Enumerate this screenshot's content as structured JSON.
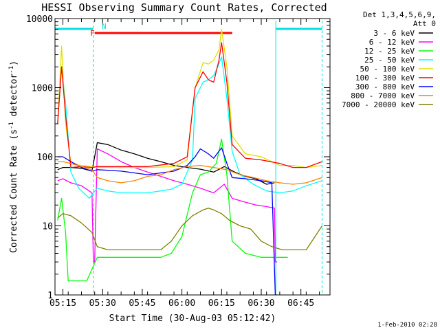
{
  "chart_data": {
    "type": "line",
    "title": "HESSI Observing Summary Count Rates, Corrected",
    "xlabel": "Start Time (30-Aug-03 05:12:42)",
    "ylabel_main": "Corrected Count Rate (s",
    "ylabel_sup1": "-1",
    "ylabel_mid": " detector",
    "ylabel_sup2": "-1",
    "ylabel_end": ")",
    "y_scale": "log",
    "ylim": [
      1,
      10000
    ],
    "xlim_min": [
      0,
      104
    ],
    "grid": false,
    "legend_position": "right",
    "y_ticks": [
      {
        "v": 1,
        "label": "1"
      },
      {
        "v": 10,
        "label": "10"
      },
      {
        "v": 100,
        "label": "100"
      },
      {
        "v": 1000,
        "label": "1000"
      },
      {
        "v": 10000,
        "label": "10000"
      }
    ],
    "x_ticks": [
      {
        "t": 3,
        "label": "05:15"
      },
      {
        "t": 18,
        "label": "05:30"
      },
      {
        "t": 33,
        "label": "05:45"
      },
      {
        "t": 48,
        "label": "06:00"
      },
      {
        "t": 63,
        "label": "06:15"
      },
      {
        "t": 78,
        "label": "06:30"
      },
      {
        "t": 93,
        "label": "06:45"
      }
    ],
    "legend_header": [
      "Det 1,3,4,5,6,9,",
      "Att 0"
    ],
    "footer_date": "1-Feb-2010 02:28",
    "flag_labels": {
      "n": "N",
      "f": "F"
    },
    "night_bars": [
      [
        0,
        14.5
      ],
      [
        83.5,
        101
      ]
    ],
    "night_edges": [
      14.5,
      83.5,
      101
    ],
    "night_color": "#00e0e0",
    "flare_bar": [
      15,
      67
    ],
    "flare_color": "#ff0000",
    "series": [
      {
        "name": "3 - 6 keV",
        "color": "#000000",
        "points": [
          [
            1,
            65
          ],
          [
            3,
            70
          ],
          [
            6,
            70
          ],
          [
            10,
            68
          ],
          [
            14,
            62
          ],
          [
            16,
            160
          ],
          [
            20,
            150
          ],
          [
            25,
            125
          ],
          [
            30,
            110
          ],
          [
            35,
            95
          ],
          [
            40,
            85
          ],
          [
            45,
            75
          ],
          [
            50,
            70
          ],
          [
            55,
            66
          ],
          [
            60,
            60
          ],
          [
            64,
            72
          ],
          [
            68,
            60
          ],
          [
            72,
            52
          ],
          [
            76,
            48
          ],
          [
            80,
            40
          ],
          [
            83,
            42
          ]
        ]
      },
      {
        "name": "6 - 12 keV",
        "color": "#ff00ff",
        "points": [
          [
            1,
            45
          ],
          [
            3,
            48
          ],
          [
            6,
            42
          ],
          [
            10,
            38
          ],
          [
            14,
            30
          ],
          [
            14.5,
            3
          ],
          [
            15,
            3
          ],
          [
            16,
            130
          ],
          [
            20,
            110
          ],
          [
            25,
            85
          ],
          [
            30,
            70
          ],
          [
            35,
            60
          ],
          [
            40,
            52
          ],
          [
            45,
            45
          ],
          [
            50,
            40
          ],
          [
            55,
            35
          ],
          [
            60,
            30
          ],
          [
            64,
            40
          ],
          [
            67,
            25
          ],
          [
            72,
            22
          ],
          [
            76,
            20
          ],
          [
            80,
            19
          ],
          [
            83,
            18
          ],
          [
            83.3,
            3
          ],
          [
            84,
            3
          ]
        ]
      },
      {
        "name": "12 - 25 keV",
        "color": "#00ff00",
        "points": [
          [
            1,
            12
          ],
          [
            2.5,
            25
          ],
          [
            4,
            8
          ],
          [
            5,
            1.6
          ],
          [
            10,
            1.6
          ],
          [
            12,
            1.6
          ],
          [
            16,
            3.5
          ],
          [
            25,
            3.5
          ],
          [
            35,
            3.5
          ],
          [
            40,
            3.5
          ],
          [
            44,
            4
          ],
          [
            48,
            7
          ],
          [
            52,
            30
          ],
          [
            55,
            55
          ],
          [
            58,
            60
          ],
          [
            61,
            80
          ],
          [
            63,
            180
          ],
          [
            65,
            55
          ],
          [
            67,
            6
          ],
          [
            72,
            4
          ],
          [
            78,
            3.5
          ],
          [
            86,
            3.5
          ],
          [
            88,
            3.5
          ]
        ]
      },
      {
        "name": "25 - 50 keV",
        "color": "#00ffff",
        "points": [
          [
            1,
            300
          ],
          [
            2.5,
            2000
          ],
          [
            4,
            600
          ],
          [
            6,
            60
          ],
          [
            9,
            35
          ],
          [
            13,
            25
          ],
          [
            14.5,
            30
          ],
          [
            16,
            35
          ],
          [
            20,
            32
          ],
          [
            25,
            30
          ],
          [
            30,
            30
          ],
          [
            35,
            30
          ],
          [
            40,
            32
          ],
          [
            44,
            34
          ],
          [
            48,
            40
          ],
          [
            52,
            90
          ],
          [
            53,
            700
          ],
          [
            56,
            1200
          ],
          [
            58,
            1300
          ],
          [
            60,
            1500
          ],
          [
            62,
            2200
          ],
          [
            63,
            2800
          ],
          [
            65,
            700
          ],
          [
            67,
            120
          ],
          [
            70,
            55
          ],
          [
            75,
            40
          ],
          [
            80,
            32
          ],
          [
            85,
            30
          ],
          [
            90,
            32
          ],
          [
            95,
            38
          ],
          [
            101,
            45
          ]
        ]
      },
      {
        "name": "50 - 100 keV",
        "color": "#e0e000",
        "points": [
          [
            1,
            300
          ],
          [
            2.5,
            4000
          ],
          [
            4,
            300
          ],
          [
            6,
            80
          ],
          [
            10,
            75
          ],
          [
            14,
            72
          ],
          [
            16,
            70
          ],
          [
            25,
            70
          ],
          [
            35,
            70
          ],
          [
            45,
            72
          ],
          [
            50,
            90
          ],
          [
            53,
            1000
          ],
          [
            56,
            2300
          ],
          [
            58,
            2200
          ],
          [
            60,
            2500
          ],
          [
            62,
            3500
          ],
          [
            63,
            7000
          ],
          [
            65,
            2000
          ],
          [
            67,
            200
          ],
          [
            72,
            110
          ],
          [
            78,
            100
          ],
          [
            85,
            75
          ],
          [
            90,
            75
          ],
          [
            95,
            70
          ],
          [
            101,
            75
          ]
        ]
      },
      {
        "name": "100 - 300 keV",
        "color": "#ff0000",
        "points": [
          [
            1,
            300
          ],
          [
            2.5,
            2000
          ],
          [
            4,
            400
          ],
          [
            6,
            70
          ],
          [
            10,
            72
          ],
          [
            14,
            70
          ],
          [
            16,
            72
          ],
          [
            25,
            72
          ],
          [
            35,
            72
          ],
          [
            45,
            80
          ],
          [
            50,
            100
          ],
          [
            53,
            1000
          ],
          [
            56,
            1700
          ],
          [
            58,
            1300
          ],
          [
            60,
            1200
          ],
          [
            62,
            2500
          ],
          [
            63,
            4500
          ],
          [
            65,
            1200
          ],
          [
            67,
            150
          ],
          [
            72,
            95
          ],
          [
            78,
            90
          ],
          [
            85,
            80
          ],
          [
            90,
            70
          ],
          [
            95,
            70
          ],
          [
            101,
            85
          ]
        ]
      },
      {
        "name": "300 - 800 keV",
        "color": "#0000ff",
        "points": [
          [
            1,
            100
          ],
          [
            3,
            100
          ],
          [
            6,
            85
          ],
          [
            10,
            70
          ],
          [
            14,
            62
          ],
          [
            16,
            65
          ],
          [
            25,
            62
          ],
          [
            35,
            55
          ],
          [
            45,
            62
          ],
          [
            50,
            75
          ],
          [
            53,
            100
          ],
          [
            55,
            130
          ],
          [
            58,
            110
          ],
          [
            60,
            95
          ],
          [
            63,
            135
          ],
          [
            65,
            80
          ],
          [
            67,
            50
          ],
          [
            72,
            48
          ],
          [
            78,
            45
          ],
          [
            82,
            42
          ],
          [
            83.3,
            1
          ],
          [
            84,
            1
          ]
        ]
      },
      {
        "name": "800 - 7000 keV",
        "color": "#ff8000",
        "points": [
          [
            1,
            85
          ],
          [
            3,
            85
          ],
          [
            6,
            80
          ],
          [
            10,
            72
          ],
          [
            14,
            65
          ],
          [
            16,
            50
          ],
          [
            20,
            45
          ],
          [
            25,
            42
          ],
          [
            30,
            45
          ],
          [
            35,
            52
          ],
          [
            40,
            55
          ],
          [
            45,
            65
          ],
          [
            50,
            72
          ],
          [
            55,
            75
          ],
          [
            60,
            70
          ],
          [
            65,
            65
          ],
          [
            70,
            55
          ],
          [
            75,
            50
          ],
          [
            80,
            45
          ],
          [
            85,
            42
          ],
          [
            90,
            40
          ],
          [
            95,
            42
          ],
          [
            101,
            50
          ]
        ]
      },
      {
        "name": "7000 - 20000 keV",
        "color": "#808000",
        "points": [
          [
            1,
            13
          ],
          [
            3,
            15
          ],
          [
            6,
            14
          ],
          [
            10,
            11
          ],
          [
            14,
            8
          ],
          [
            16,
            5
          ],
          [
            20,
            4.5
          ],
          [
            30,
            4.5
          ],
          [
            40,
            4.5
          ],
          [
            44,
            6
          ],
          [
            48,
            10
          ],
          [
            52,
            14
          ],
          [
            56,
            17
          ],
          [
            58,
            18
          ],
          [
            60,
            17
          ],
          [
            63,
            15
          ],
          [
            66,
            12
          ],
          [
            70,
            10
          ],
          [
            74,
            9
          ],
          [
            78,
            6
          ],
          [
            82,
            5
          ],
          [
            86,
            4.5
          ],
          [
            90,
            4.5
          ],
          [
            95,
            4.5
          ],
          [
            101,
            10
          ]
        ]
      }
    ]
  }
}
